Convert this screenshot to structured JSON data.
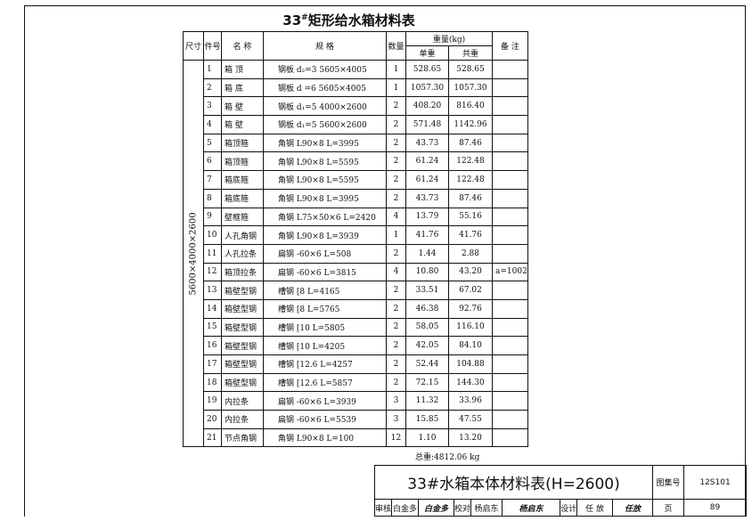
{
  "title": {
    "number": "33",
    "mark": "#",
    "text": "矩形给水箱材料表"
  },
  "headers": {
    "size": "尺寸",
    "part_no": "件号",
    "name": "名 称",
    "spec": "规 格",
    "qty": "数量",
    "weight": "重量(kg)",
    "unit_weight": "单重",
    "total_weight": "共重",
    "remarks": "备 注"
  },
  "size_value": "5600×4000×2600",
  "rows": [
    {
      "no": "1",
      "name": "箱 顶",
      "spec": "钢板 d₂=3 5605×4005",
      "qty": "1",
      "unit": "528.65",
      "total": "528.65",
      "remark": ""
    },
    {
      "no": "2",
      "name": "箱 底",
      "spec": "钢板 d =6  5605×4005",
      "qty": "1",
      "unit": "1057.30",
      "total": "1057.30",
      "remark": ""
    },
    {
      "no": "3",
      "name": "箱 壁",
      "spec": "钢板 d₁=5 4000×2600",
      "qty": "2",
      "unit": "408.20",
      "total": "816.40",
      "remark": ""
    },
    {
      "no": "4",
      "name": "箱 壁",
      "spec": "钢板 d₁=5 5600×2600",
      "qty": "2",
      "unit": "571.48",
      "total": "1142.96",
      "remark": ""
    },
    {
      "no": "5",
      "name": "箱顶箍",
      "spec": "角钢 L90×8  L=3995",
      "qty": "2",
      "unit": "43.73",
      "total": "87.46",
      "remark": ""
    },
    {
      "no": "6",
      "name": "箱顶箍",
      "spec": "角钢 L90×8  L=5595",
      "qty": "2",
      "unit": "61.24",
      "total": "122.48",
      "remark": ""
    },
    {
      "no": "7",
      "name": "箱底箍",
      "spec": "角钢 L90×8  L=5595",
      "qty": "2",
      "unit": "61.24",
      "total": "122.48",
      "remark": ""
    },
    {
      "no": "8",
      "name": "箱底箍",
      "spec": "角钢 L90×8  L=3995",
      "qty": "2",
      "unit": "43.73",
      "total": "87.46",
      "remark": ""
    },
    {
      "no": "9",
      "name": "壁框箍",
      "spec": "角钢 L75×50×6 L=2420",
      "qty": "4",
      "unit": "13.79",
      "total": "55.16",
      "remark": ""
    },
    {
      "no": "10",
      "name": "人孔角钢",
      "spec": "角钢 L90×8  L=3939",
      "qty": "1",
      "unit": "41.76",
      "total": "41.76",
      "remark": ""
    },
    {
      "no": "11",
      "name": "人孔拉条",
      "spec": "扁钢 -60×6  L=508",
      "qty": "2",
      "unit": "1.44",
      "total": "2.88",
      "remark": ""
    },
    {
      "no": "12",
      "name": "箱顶拉条",
      "spec": "扁钢 -60×6  L=3815",
      "qty": "4",
      "unit": "10.80",
      "total": "43.20",
      "remark": "a=1002"
    },
    {
      "no": "13",
      "name": "箱壁型钢",
      "spec": "槽钢 [8    L=4165",
      "qty": "2",
      "unit": "33.51",
      "total": "67.02",
      "remark": ""
    },
    {
      "no": "14",
      "name": "箱壁型钢",
      "spec": "槽钢 [8    L=5765",
      "qty": "2",
      "unit": "46.38",
      "total": "92.76",
      "remark": ""
    },
    {
      "no": "15",
      "name": "箱壁型钢",
      "spec": "槽钢 [10   L=5805",
      "qty": "2",
      "unit": "58.05",
      "total": "116.10",
      "remark": ""
    },
    {
      "no": "16",
      "name": "箱壁型钢",
      "spec": "槽钢 [10   L=4205",
      "qty": "2",
      "unit": "42.05",
      "total": "84.10",
      "remark": ""
    },
    {
      "no": "17",
      "name": "箱壁型钢",
      "spec": "槽钢 [12.6  L=4257",
      "qty": "2",
      "unit": "52.44",
      "total": "104.88",
      "remark": ""
    },
    {
      "no": "18",
      "name": "箱壁型钢",
      "spec": "槽钢 [12.6  L=5857",
      "qty": "2",
      "unit": "72.15",
      "total": "144.30",
      "remark": ""
    },
    {
      "no": "19",
      "name": "内拉条",
      "spec": "扁钢 -60×6  L=3939",
      "qty": "3",
      "unit": "11.32",
      "total": "33.96",
      "remark": ""
    },
    {
      "no": "20",
      "name": "内拉条",
      "spec": "扁钢 -60×6  L=5539",
      "qty": "3",
      "unit": "15.85",
      "total": "47.55",
      "remark": ""
    },
    {
      "no": "21",
      "name": "节点角钢",
      "spec": "角钢 L90×8  L=100",
      "qty": "12",
      "unit": "1.10",
      "total": "13.20",
      "remark": ""
    }
  ],
  "total": "总重:4812.06 kg",
  "title_block": {
    "drawing_title": "33#水箱本体材料表(H=2600)",
    "atlas_label": "图集号",
    "atlas_no": "12S101",
    "review_label": "审核",
    "reviewer": "白金多",
    "reviewer_sig": "白金多",
    "check_label": "校对",
    "checker": "杨启东",
    "checker_sig": "杨启东",
    "design_label": "设计",
    "designer": "任 放",
    "designer_sig": "任放",
    "page_label": "页",
    "page_no": "89"
  }
}
